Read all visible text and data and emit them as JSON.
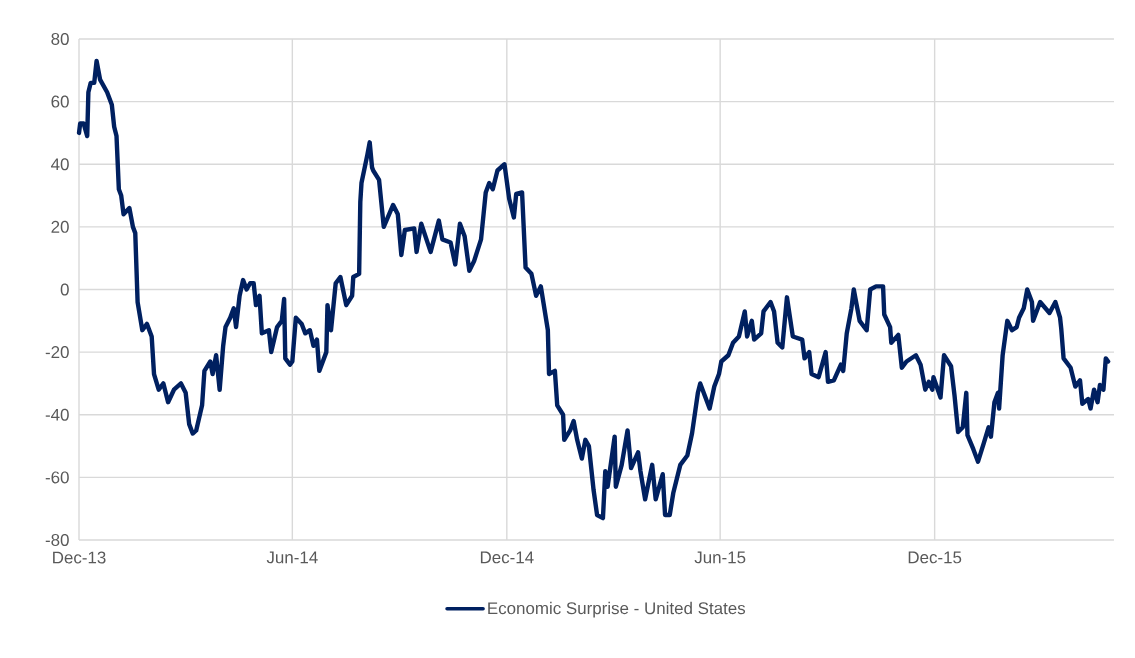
{
  "chart_data": {
    "type": "line",
    "x": [
      "2013-12-01",
      "2013-12-02",
      "2013-12-05",
      "2013-12-08",
      "2013-12-09",
      "2013-12-11",
      "2013-12-14",
      "2013-12-16",
      "2013-12-19",
      "2013-12-25",
      "2013-12-29",
      "2013-12-31",
      "2014-01-02",
      "2014-01-04",
      "2014-01-06",
      "2014-01-08",
      "2014-01-13",
      "2014-01-16",
      "2014-01-18",
      "2014-01-20",
      "2014-01-24",
      "2014-01-28",
      "2014-02-01",
      "2014-02-03",
      "2014-02-07",
      "2014-02-11",
      "2014-02-15",
      "2014-02-20",
      "2014-02-26",
      "2014-03-02",
      "2014-03-05",
      "2014-03-08",
      "2014-03-11",
      "2014-03-16",
      "2014-03-18",
      "2014-03-23",
      "2014-03-25",
      "2014-03-28",
      "2014-03-31",
      "2014-04-03",
      "2014-04-05",
      "2014-04-09",
      "2014-04-12",
      "2014-04-14",
      "2014-04-17",
      "2014-04-20",
      "2014-04-23",
      "2014-04-26",
      "2014-04-29",
      "2014-05-01",
      "2014-05-04",
      "2014-05-06",
      "2014-05-12",
      "2014-05-14",
      "2014-05-19",
      "2014-05-23",
      "2014-05-25",
      "2014-05-26",
      "2014-05-30",
      "2014-06-01",
      "2014-06-04",
      "2014-06-09",
      "2014-06-12",
      "2014-06-16",
      "2014-06-19",
      "2014-06-22",
      "2014-06-24",
      "2014-06-30",
      "2014-07-01",
      "2014-07-04",
      "2014-07-08",
      "2014-07-12",
      "2014-07-17",
      "2014-07-22",
      "2014-07-23",
      "2014-07-28",
      "2014-07-29",
      "2014-07-30",
      "2014-08-04",
      "2014-08-06",
      "2014-08-08",
      "2014-08-09",
      "2014-08-14",
      "2014-08-18",
      "2014-08-26",
      "2014-08-30",
      "2014-09-02",
      "2014-09-05",
      "2014-09-13",
      "2014-09-15",
      "2014-09-19",
      "2014-09-27",
      "2014-10-04",
      "2014-10-07",
      "2014-10-14",
      "2014-10-18",
      "2014-10-22",
      "2014-10-26",
      "2014-10-30",
      "2014-11-03",
      "2014-11-09",
      "2014-11-13",
      "2014-11-16",
      "2014-11-19",
      "2014-11-23",
      "2014-11-29",
      "2014-12-03",
      "2014-12-07",
      "2014-12-09",
      "2014-12-14",
      "2014-12-17",
      "2014-12-22",
      "2014-12-26",
      "2014-12-30",
      "2015-01-05",
      "2015-01-06",
      "2015-01-11",
      "2015-01-13",
      "2015-01-18",
      "2015-01-19",
      "2015-01-24",
      "2015-01-27",
      "2015-01-30",
      "2015-02-03",
      "2015-02-06",
      "2015-02-09",
      "2015-02-13",
      "2015-02-16",
      "2015-02-21",
      "2015-02-23",
      "2015-02-25",
      "2015-03-03",
      "2015-03-04",
      "2015-03-09",
      "2015-03-14",
      "2015-03-17",
      "2015-03-23",
      "2015-03-25",
      "2015-03-29",
      "2015-04-04",
      "2015-04-07",
      "2015-04-13",
      "2015-04-15",
      "2015-04-19",
      "2015-04-22",
      "2015-04-28",
      "2015-05-04",
      "2015-05-08",
      "2015-05-13",
      "2015-05-15",
      "2015-05-23",
      "2015-05-27",
      "2015-05-31",
      "2015-06-02",
      "2015-06-08",
      "2015-06-12",
      "2015-06-17",
      "2015-06-22",
      "2015-06-24",
      "2015-06-28",
      "2015-06-30",
      "2015-07-06",
      "2015-07-08",
      "2015-07-14",
      "2015-07-17",
      "2015-07-20",
      "2015-07-24",
      "2015-07-28",
      "2015-08-02",
      "2015-08-10",
      "2015-08-12",
      "2015-08-16",
      "2015-08-18",
      "2015-08-24",
      "2015-08-30",
      "2015-09-01",
      "2015-09-06",
      "2015-09-12",
      "2015-09-14",
      "2015-09-17",
      "2015-09-21",
      "2015-09-23",
      "2015-09-28",
      "2015-10-04",
      "2015-10-07",
      "2015-10-12",
      "2015-10-18",
      "2015-10-19",
      "2015-10-24",
      "2015-10-25",
      "2015-10-31",
      "2015-11-03",
      "2015-11-07",
      "2015-11-15",
      "2015-11-19",
      "2015-11-23",
      "2015-11-26",
      "2015-11-29",
      "2015-11-30",
      "2015-12-06",
      "2015-12-09",
      "2015-12-15",
      "2015-12-18",
      "2015-12-21",
      "2015-12-25",
      "2015-12-28",
      "2015-12-29",
      "2016-01-03",
      "2016-01-07",
      "2016-01-12",
      "2016-01-16",
      "2016-01-18",
      "2016-01-21",
      "2016-01-24",
      "2016-01-25",
      "2016-01-28",
      "2016-02-01",
      "2016-02-05",
      "2016-02-09",
      "2016-02-11",
      "2016-02-15",
      "2016-02-18",
      "2016-02-22",
      "2016-02-23",
      "2016-02-29",
      "2016-03-08",
      "2016-03-13",
      "2016-03-17",
      "2016-03-18",
      "2016-03-20",
      "2016-03-26",
      "2016-03-30",
      "2016-04-03",
      "2016-04-05",
      "2016-04-10",
      "2016-04-12",
      "2016-04-15",
      "2016-04-18",
      "2016-04-20",
      "2016-04-23",
      "2016-04-25",
      "2016-04-27"
    ],
    "series": [
      {
        "name": "Economic Surprise - United States",
        "color": "#002060",
        "values": [
          50,
          53,
          53,
          49,
          63,
          66,
          66,
          73,
          67,
          63,
          59,
          52,
          49,
          32,
          30,
          24,
          26,
          20,
          18,
          -4,
          -13,
          -11,
          -15,
          -27,
          -32,
          -30,
          -36,
          -32,
          -30,
          -33,
          -43,
          -46,
          -45,
          -37,
          -26,
          -23,
          -27,
          -21,
          -32,
          -18,
          -12,
          -9,
          -6,
          -12,
          -2,
          3,
          0,
          2,
          2,
          -5,
          -2,
          -14,
          -13,
          -20,
          -12,
          -10,
          -3,
          -22,
          -24,
          -23,
          -9,
          -11,
          -14,
          -13,
          -18,
          -16,
          -26,
          -20,
          -5,
          -13,
          2,
          4,
          -5,
          -2,
          4,
          5,
          28,
          34,
          43,
          47,
          39,
          38,
          35,
          20,
          27,
          24,
          11,
          19,
          19.5,
          12,
          21,
          12,
          22,
          16,
          15,
          8,
          21,
          17,
          6,
          9,
          16,
          31,
          34,
          32,
          38,
          40,
          29,
          23,
          30.5,
          31,
          7,
          5,
          -2,
          1,
          -13,
          -27,
          -26,
          -37,
          -40,
          -48,
          -45,
          -42,
          -48,
          -54,
          -48,
          -50,
          -64,
          -72,
          -73,
          -58,
          -63,
          -47,
          -63,
          -56,
          -45,
          -57,
          -52,
          -58,
          -67,
          -56,
          -67,
          -59,
          -72,
          -72,
          -65,
          -56,
          -53,
          -46,
          -33,
          -30,
          -38,
          -31,
          -27,
          -23,
          -21,
          -17,
          -15,
          -7,
          -15,
          -10,
          -16,
          -14,
          -7,
          -4,
          -7,
          -17,
          -18.5,
          -2.5,
          -15,
          -16,
          -22,
          -20,
          -27,
          -28,
          -20,
          -29.5,
          -29,
          -24,
          -26,
          -14,
          -6,
          0,
          -10,
          -13,
          0,
          1,
          1,
          -8,
          -12,
          -17,
          -14.5,
          -25,
          -23,
          -21,
          -24,
          -32,
          -29.5,
          -32,
          -28,
          -34.5,
          -21,
          -24.5,
          -34,
          -45.5,
          -44,
          -33,
          -46.5,
          -51,
          -55,
          -49,
          -44,
          -47,
          -36,
          -33,
          -38,
          -21,
          -10,
          -13,
          -12,
          -9,
          -6,
          0,
          -4,
          -10,
          -4,
          -7.5,
          -4,
          -9,
          -12.5,
          -22,
          -25,
          -31,
          -29,
          -36.5,
          -35,
          -38,
          -32,
          -36,
          -30.5,
          -32,
          -22,
          -23
        ]
      }
    ],
    "xlim": [
      "2013-12-01",
      "2016-05-02"
    ],
    "xticks": [
      {
        "value": "2013-12-01",
        "label": "Dec-13"
      },
      {
        "value": "2014-06-01",
        "label": "Jun-14"
      },
      {
        "value": "2014-12-01",
        "label": "Dec-14"
      },
      {
        "value": "2015-06-01",
        "label": "Jun-15"
      },
      {
        "value": "2015-12-01",
        "label": "Dec-15"
      }
    ],
    "ylim": [
      -80,
      80
    ],
    "yticks": [
      -80,
      -60,
      -40,
      -20,
      0,
      20,
      40,
      60,
      80
    ],
    "grid": true,
    "legend": "bottom",
    "line_style": "solid"
  }
}
